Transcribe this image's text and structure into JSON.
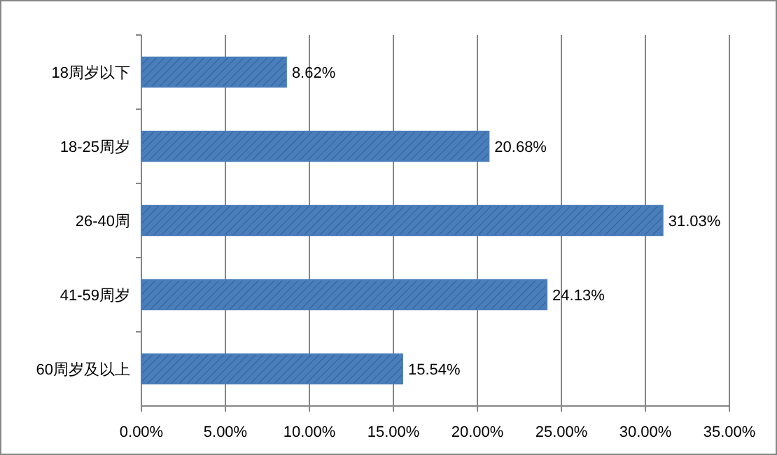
{
  "chart_data": {
    "type": "bar",
    "orientation": "horizontal",
    "categories": [
      "18周岁以下",
      "18-25周岁",
      "26-40周",
      "41-59周岁",
      "60周岁及以上"
    ],
    "values": [
      8.62,
      20.68,
      31.03,
      24.13,
      15.54
    ],
    "value_labels": [
      "8.62%",
      "20.68%",
      "31.03%",
      "24.13%",
      "15.54%"
    ],
    "color": "#4a7ebb",
    "xlim": [
      0,
      35
    ],
    "xticks": [
      {
        "value": 0,
        "label": "0.00%"
      },
      {
        "value": 5,
        "label": "5.00%"
      },
      {
        "value": 10,
        "label": "10.00%"
      },
      {
        "value": 15,
        "label": "15.00%"
      },
      {
        "value": 20,
        "label": "20.00%"
      },
      {
        "value": 25,
        "label": "25.00%"
      },
      {
        "value": 30,
        "label": "30.00%"
      },
      {
        "value": 35,
        "label": "35.00%"
      }
    ],
    "grid": "x"
  }
}
